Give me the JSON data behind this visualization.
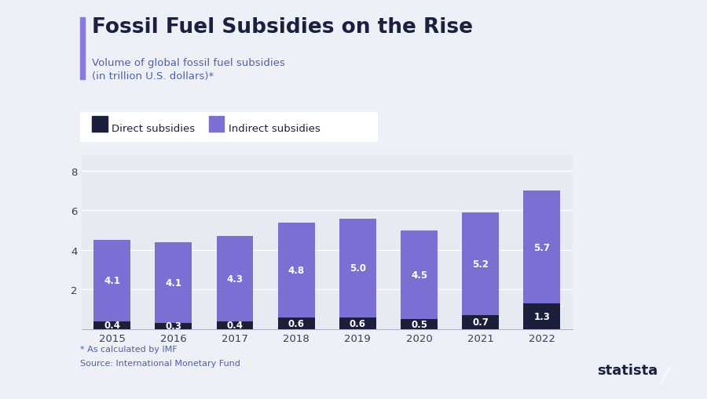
{
  "title": "Fossil Fuel Subsidies on the Rise",
  "subtitle": "Volume of global fossil fuel subsidies\n(in trillion U.S. dollars)*",
  "years": [
    "2015",
    "2016",
    "2017",
    "2018",
    "2019",
    "2020",
    "2021",
    "2022"
  ],
  "direct": [
    0.4,
    0.3,
    0.4,
    0.6,
    0.6,
    0.5,
    0.7,
    1.3
  ],
  "indirect": [
    4.1,
    4.1,
    4.3,
    4.8,
    5.0,
    4.5,
    5.2,
    5.7
  ],
  "direct_color": "#1c1f3a",
  "indirect_color": "#7b6fd4",
  "bg_color": "#eef0f7",
  "chart_bg": "#e8eaf2",
  "bar_width": 0.6,
  "ylim": [
    0,
    8.8
  ],
  "yticks": [
    0,
    2,
    4,
    6,
    8
  ],
  "footnote1": "* As calculated by IMF",
  "footnote2": "Source: International Monetary Fund",
  "title_accent_color": "#8878e0",
  "title_color": "#1a2040",
  "subtitle_color": "#5060a0",
  "tick_color": "#3a3a5a",
  "grid_color": "#ffffff",
  "legend_bg": "#ffffff"
}
